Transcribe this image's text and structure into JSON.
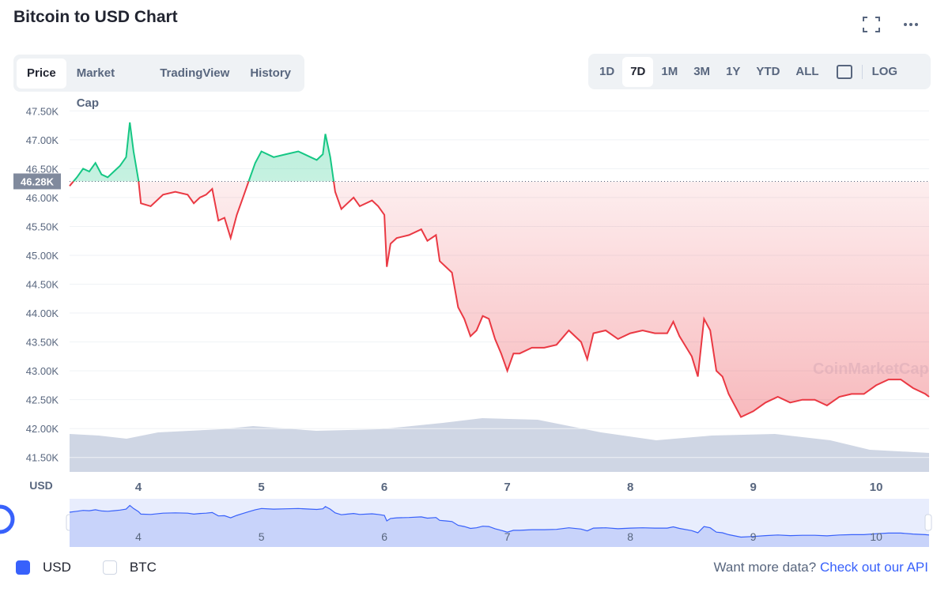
{
  "header": {
    "title": "Bitcoin to USD Chart"
  },
  "tabs": {
    "items": [
      "Price",
      "Market Cap",
      "TradingView",
      "History"
    ],
    "active": 0
  },
  "ranges": {
    "items": [
      "1D",
      "7D",
      "1M",
      "3M",
      "1Y",
      "YTD",
      "ALL"
    ],
    "active": 1,
    "log": "LOG"
  },
  "chart_data": {
    "type": "line",
    "y_label": "USD",
    "watermark": "CoinMarketCap",
    "x": [
      3.44,
      3.5,
      3.55,
      3.6,
      3.65,
      3.7,
      3.75,
      3.8,
      3.85,
      3.9,
      3.93,
      3.96,
      4.0,
      4.02,
      4.1,
      4.2,
      4.3,
      4.4,
      4.45,
      4.5,
      4.55,
      4.6,
      4.65,
      4.7,
      4.75,
      4.8,
      4.85,
      4.9,
      4.95,
      5.0,
      5.1,
      5.2,
      5.3,
      5.4,
      5.45,
      5.5,
      5.52,
      5.56,
      5.6,
      5.65,
      5.7,
      5.75,
      5.8,
      5.9,
      5.95,
      6.0,
      6.02,
      6.05,
      6.1,
      6.2,
      6.3,
      6.35,
      6.42,
      6.45,
      6.5,
      6.55,
      6.6,
      6.65,
      6.7,
      6.75,
      6.8,
      6.85,
      6.9,
      6.95,
      7.0,
      7.05,
      7.1,
      7.2,
      7.3,
      7.4,
      7.5,
      7.6,
      7.65,
      7.7,
      7.8,
      7.9,
      8.0,
      8.1,
      8.2,
      8.3,
      8.35,
      8.4,
      8.5,
      8.55,
      8.6,
      8.65,
      8.7,
      8.75,
      8.8,
      8.9,
      9.0,
      9.1,
      9.2,
      9.3,
      9.4,
      9.5,
      9.6,
      9.7,
      9.8,
      9.9,
      10.0,
      10.1,
      10.2,
      10.3,
      10.4,
      10.43
    ],
    "values": [
      46200,
      46350,
      46500,
      46450,
      46600,
      46400,
      46350,
      46450,
      46550,
      46700,
      47300,
      46800,
      46300,
      45900,
      45850,
      46050,
      46100,
      46050,
      45900,
      46000,
      46050,
      46150,
      45600,
      45650,
      45300,
      45700,
      46000,
      46300,
      46600,
      46800,
      46700,
      46750,
      46800,
      46700,
      46650,
      46750,
      47100,
      46700,
      46100,
      45800,
      45900,
      46000,
      45850,
      45950,
      45850,
      45700,
      44800,
      45200,
      45300,
      45350,
      45450,
      45250,
      45350,
      44900,
      44800,
      44700,
      44100,
      43900,
      43600,
      43700,
      43950,
      43900,
      43550,
      43300,
      43000,
      43300,
      43300,
      43400,
      43400,
      43450,
      43700,
      43500,
      43200,
      43650,
      43700,
      43550,
      43650,
      43700,
      43650,
      43650,
      43850,
      43600,
      43250,
      42900,
      43900,
      43700,
      43000,
      42900,
      42600,
      42200,
      42300,
      42450,
      42550,
      42450,
      42500,
      42500,
      42400,
      42550,
      42600,
      42600,
      42750,
      42850,
      42850,
      42700,
      42600,
      42550
    ],
    "up_color": "#16c784",
    "down_color": "#ea3943",
    "reference": {
      "value": 46280,
      "label": "46.28K"
    },
    "xlim": [
      3.44,
      10.43
    ],
    "ylim": [
      41250,
      47600
    ],
    "xticks": [
      4,
      5,
      6,
      7,
      8,
      9,
      10
    ],
    "yticks": [
      {
        "value": 41500,
        "label": "41.50K"
      },
      {
        "value": 42000,
        "label": "42.00K"
      },
      {
        "value": 42500,
        "label": "42.50K"
      },
      {
        "value": 43000,
        "label": "43.00K"
      },
      {
        "value": 43500,
        "label": "43.50K"
      },
      {
        "value": 44000,
        "label": "44.00K"
      },
      {
        "value": 44500,
        "label": "44.50K"
      },
      {
        "value": 45000,
        "label": "45.00K"
      },
      {
        "value": 45500,
        "label": "45.50K"
      },
      {
        "value": 46000,
        "label": "46.00K"
      },
      {
        "value": 46500,
        "label": "46.50K"
      },
      {
        "value": 47000,
        "label": "47.00K"
      },
      {
        "value": 47500,
        "label": "47.50K"
      }
    ],
    "grid": true
  },
  "footer": {
    "currencies": [
      "USD",
      "BTC"
    ],
    "checked": 0,
    "prompt": "Want more data?",
    "link": "Check out our API"
  }
}
